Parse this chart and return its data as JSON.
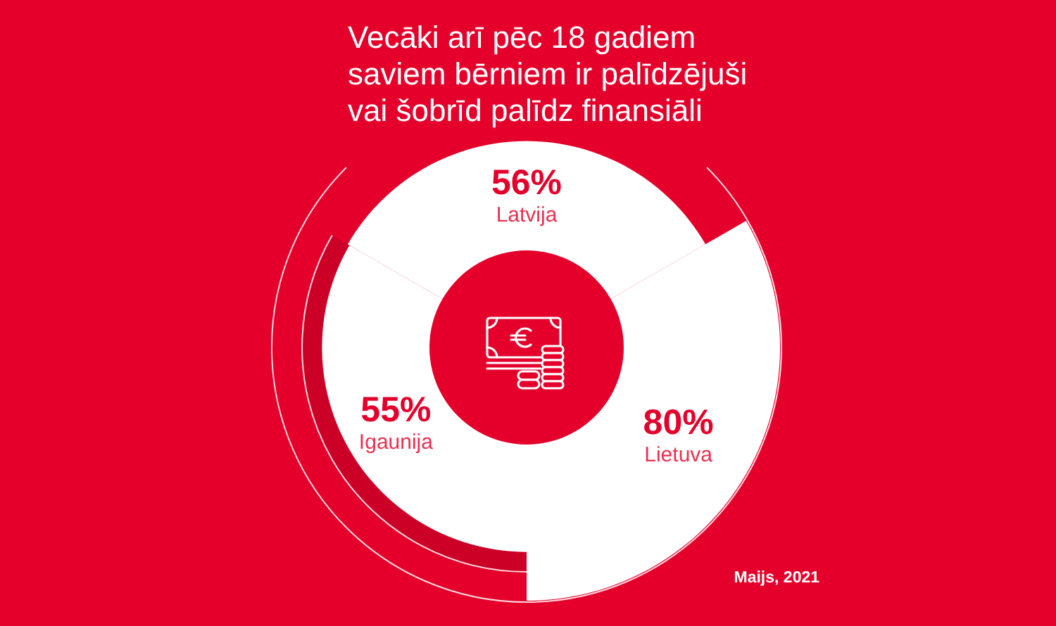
{
  "chart_data": {
    "type": "other",
    "title": "Vecāki arī pēc 18 gadiem saviem bērniem ir palīdzējuši vai šobrīd palīdz finansiāli",
    "categories": [
      "Latvija",
      "Lietuva",
      "Igaunija"
    ],
    "values": [
      56,
      80,
      55
    ],
    "value_labels": [
      "56%",
      "80%",
      "55%"
    ],
    "colors": [
      "#ffffff",
      "#ffffff",
      "#ffffff"
    ],
    "annotations": [
      "Maijs, 2021"
    ]
  }
}
